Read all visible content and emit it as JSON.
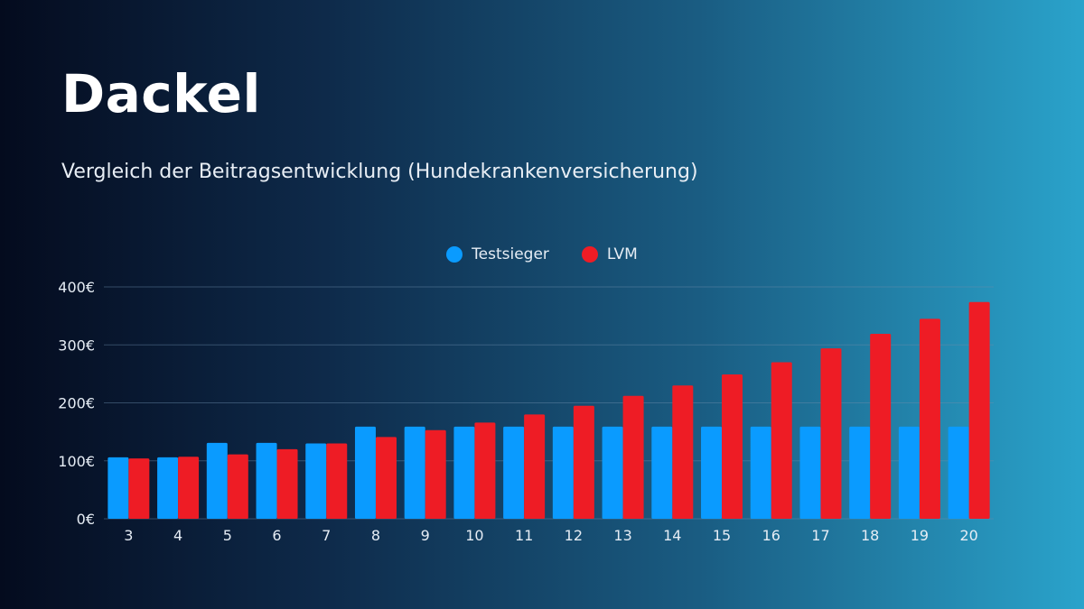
{
  "header": {
    "title": "Dackel",
    "subtitle": "Vergleich der Beitragsentwicklung (Hundekrankenversicherung)"
  },
  "colors": {
    "testsieger": "#0a9bff",
    "lvm": "#ee1c25",
    "grid": "#6a8cab"
  },
  "chart_data": {
    "type": "bar",
    "categories": [
      "3",
      "4",
      "5",
      "6",
      "7",
      "8",
      "9",
      "10",
      "11",
      "12",
      "13",
      "14",
      "15",
      "16",
      "17",
      "18",
      "19",
      "20"
    ],
    "series": [
      {
        "name": "Testsieger",
        "values": [
          106,
          106,
          131,
          131,
          130,
          159,
          159,
          159,
          159,
          159,
          159,
          159,
          159,
          159,
          159,
          159,
          159,
          159
        ]
      },
      {
        "name": "LVM",
        "values": [
          104,
          107,
          111,
          120,
          130,
          141,
          153,
          166,
          180,
          195,
          212,
          230,
          249,
          270,
          294,
          319,
          345,
          374
        ]
      }
    ],
    "ylim": [
      0,
      400
    ],
    "yticks": [
      0,
      100,
      200,
      300,
      400
    ],
    "ytick_labels": [
      "0€",
      "100€",
      "200€",
      "300€",
      "400€"
    ],
    "grid": true,
    "legend": "top-center"
  }
}
